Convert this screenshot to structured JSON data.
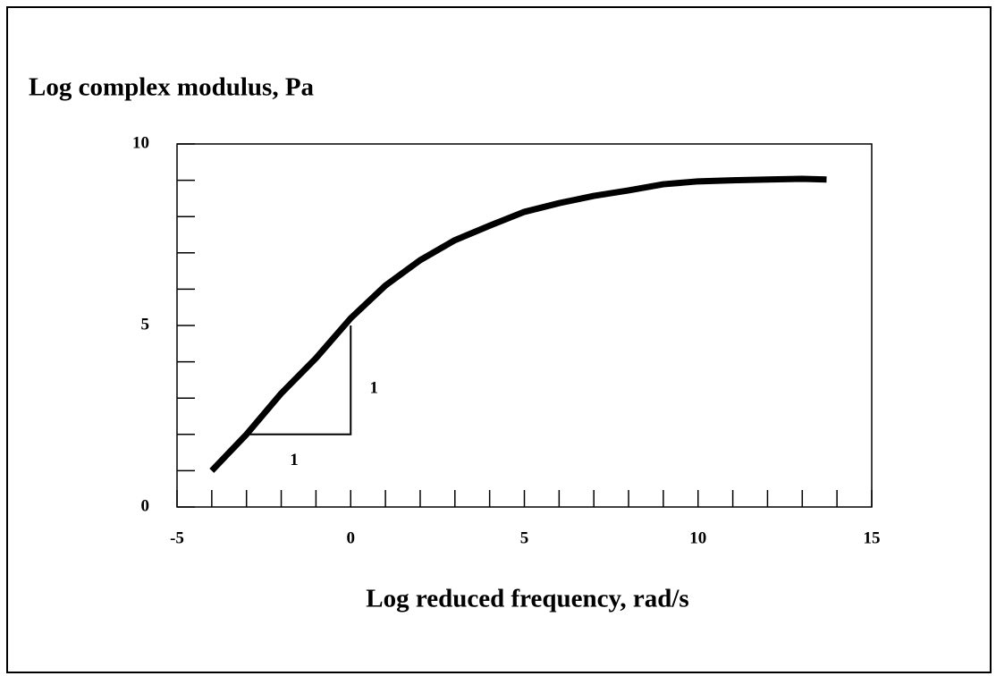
{
  "chart_data": {
    "type": "line",
    "ylabel": "Log complex modulus, Pa",
    "xlabel": "Log reduced frequency, rad/s",
    "x": [
      -4,
      -3,
      -2,
      -1,
      0,
      1,
      2,
      3,
      4,
      5,
      6,
      7,
      8,
      9,
      10,
      11,
      12,
      13,
      13.7
    ],
    "series": [
      {
        "name": "Log complex modulus",
        "color": "#000000",
        "values": [
          1.0,
          2.0,
          3.13,
          4.1,
          5.2,
          6.1,
          6.8,
          7.35,
          7.75,
          8.13,
          8.37,
          8.57,
          8.72,
          8.89,
          8.97,
          9.0,
          9.02,
          9.04,
          9.02
        ]
      }
    ],
    "xlim": [
      -5,
      15
    ],
    "xticks": [
      -5,
      0,
      5,
      10,
      15
    ],
    "xminor_ticks": [
      -4,
      -3,
      -2,
      -1,
      1,
      2,
      3,
      4,
      6,
      7,
      8,
      9,
      11,
      12,
      13,
      14
    ],
    "ylim": [
      0,
      10
    ],
    "yticks": [
      0,
      5,
      10
    ],
    "yminor_ticks": [
      1,
      2,
      3,
      4,
      6,
      7,
      8,
      9
    ],
    "slope_triangle": {
      "x": [
        -3,
        0
      ],
      "y": [
        2,
        5
      ],
      "labels": [
        "1",
        "1"
      ]
    },
    "grid": false
  }
}
